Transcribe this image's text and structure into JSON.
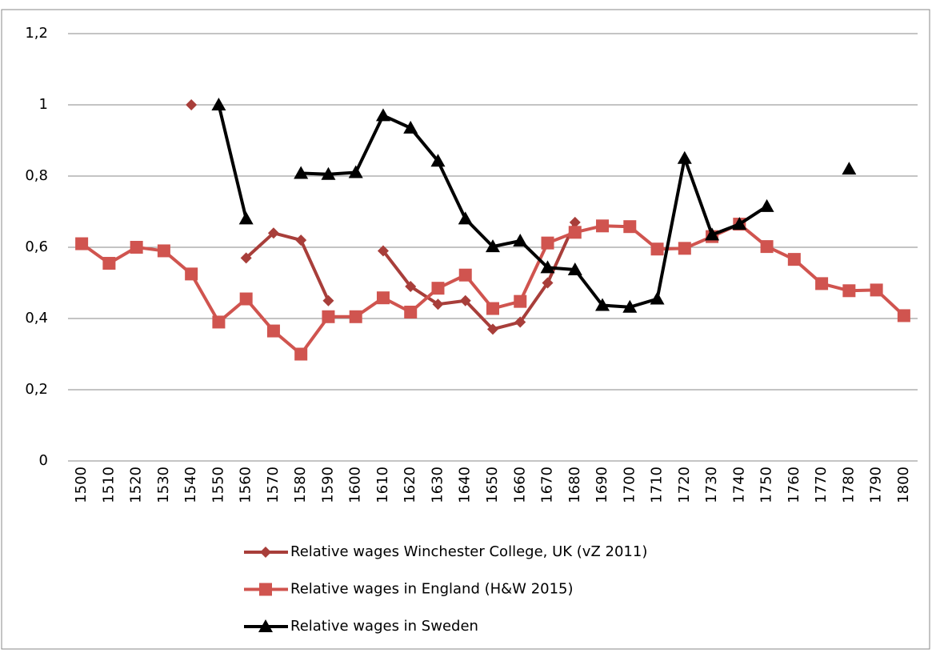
{
  "chart_data": {
    "type": "line",
    "categories": [
      "1500",
      "1510",
      "1520",
      "1530",
      "1540",
      "1550",
      "1560",
      "1570",
      "1580",
      "1590",
      "1600",
      "1610",
      "1620",
      "1630",
      "1640",
      "1650",
      "1660",
      "1670",
      "1680",
      "1690",
      "1700",
      "1710",
      "1720",
      "1730",
      "1740",
      "1750",
      "1760",
      "1770",
      "1780",
      "1790",
      "1800"
    ],
    "series": [
      {
        "name": "Relative wages Winchester College, UK (vZ 2011)",
        "color": "#a83e3a",
        "marker": "diamond",
        "values": [
          null,
          null,
          null,
          null,
          1.0,
          null,
          0.57,
          0.64,
          0.62,
          0.45,
          null,
          0.59,
          0.49,
          0.44,
          0.45,
          0.37,
          0.39,
          0.5,
          0.67,
          null,
          null,
          null,
          null,
          null,
          null,
          null,
          null,
          null,
          null,
          null,
          null
        ]
      },
      {
        "name": "Relative wages in England (H&W 2015)",
        "color": "#d0544f",
        "marker": "square",
        "values": [
          0.61,
          0.555,
          0.6,
          0.59,
          0.525,
          0.39,
          0.455,
          0.365,
          0.3,
          0.405,
          0.405,
          0.458,
          0.418,
          0.485,
          0.522,
          0.428,
          0.448,
          0.612,
          0.642,
          0.66,
          0.658,
          0.595,
          0.597,
          0.63,
          0.665,
          0.602,
          0.566,
          0.498,
          0.478,
          0.48,
          0.408
        ]
      },
      {
        "name": "Relative wages in Sweden",
        "color": "#000000",
        "marker": "triangle",
        "values": [
          null,
          null,
          null,
          null,
          null,
          1.0,
          0.68,
          null,
          0.808,
          0.805,
          0.81,
          0.97,
          0.935,
          0.842,
          0.68,
          0.602,
          0.618,
          0.543,
          0.537,
          0.437,
          0.432,
          0.455,
          0.85,
          0.635,
          0.665,
          0.715,
          null,
          null,
          0.82,
          null,
          null
        ]
      }
    ],
    "ylim": [
      0,
      1.2
    ],
    "yticks": [
      0,
      {
        "value": 0.2,
        "label": "0,2"
      },
      {
        "value": 0.4,
        "label": "0,4"
      },
      {
        "value": 0.6,
        "label": "0,6"
      },
      {
        "value": 0.8,
        "label": "0,8"
      },
      1,
      {
        "value": 1.2,
        "label": "1,2"
      }
    ],
    "grid": true,
    "legend": "bottom"
  }
}
